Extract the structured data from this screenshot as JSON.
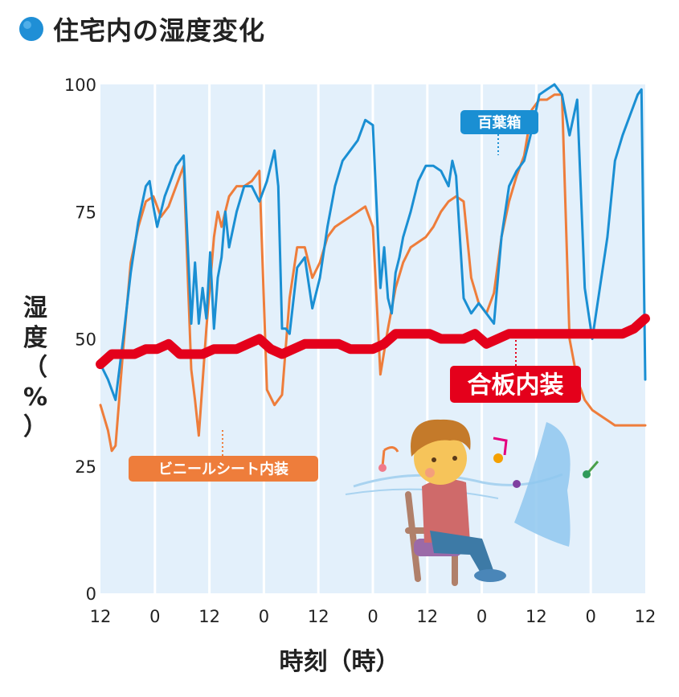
{
  "title": "住宅内の湿度変化",
  "colors": {
    "title_dot": "#1f8fd6",
    "plot_bg": "#e3f0fb",
    "grid": "#ffffff",
    "hyakuyobako": "#1a8fd3",
    "vinyl": "#ee7d3b",
    "plywood": "#e4001b"
  },
  "chart_data": {
    "type": "line",
    "title": "住宅内の湿度変化",
    "ylabel": "湿度 (%)",
    "xlabel": "時刻（時）",
    "ylim": [
      0,
      100
    ],
    "yticks": [
      0,
      25,
      50,
      75,
      100
    ],
    "xlim_hours": [
      0,
      144
    ],
    "xtick_labels": [
      "12",
      "0",
      "12",
      "0",
      "12",
      "0",
      "12",
      "0",
      "12",
      "0",
      "12"
    ],
    "grid": true,
    "series": [
      {
        "name": "百葉箱",
        "x": [
          0,
          2,
          4,
          6,
          8,
          10,
          12,
          13,
          14,
          15,
          16,
          17,
          18,
          20,
          22,
          24,
          25,
          26,
          27,
          28,
          29,
          30,
          31,
          32,
          33,
          34,
          36,
          38,
          40,
          42,
          44,
          45,
          46,
          47,
          48,
          49,
          50,
          52,
          54,
          56,
          58,
          60,
          62,
          64,
          66,
          68,
          70,
          72,
          74,
          75,
          76,
          77,
          78,
          79,
          80,
          82,
          84,
          86,
          88,
          90,
          92,
          93,
          94,
          96,
          98,
          100,
          102,
          104,
          106,
          108,
          110,
          112,
          114,
          116,
          118,
          120,
          122,
          124,
          126,
          128,
          130,
          132,
          134,
          136,
          138,
          140,
          142,
          143,
          144
        ],
        "y": [
          45,
          42,
          38,
          50,
          63,
          73,
          80,
          81,
          76,
          72,
          75,
          78,
          80,
          84,
          86,
          53,
          65,
          53,
          60,
          54,
          67,
          52,
          62,
          66,
          75,
          68,
          75,
          80,
          80,
          77,
          81,
          84,
          87,
          80,
          52,
          52,
          51,
          64,
          66,
          56,
          62,
          72,
          80,
          85,
          87,
          89,
          93,
          92,
          60,
          68,
          58,
          55,
          63,
          66,
          70,
          75,
          81,
          84,
          84,
          83,
          80,
          85,
          82,
          58,
          55,
          57,
          55,
          53,
          70,
          80,
          83,
          85,
          91,
          98,
          99,
          100,
          98,
          90,
          97,
          60,
          50,
          60,
          70,
          85,
          90,
          94,
          98,
          99,
          42
        ]
      },
      {
        "name": "ビニールシート内装",
        "x": [
          0,
          2,
          3,
          4,
          6,
          8,
          10,
          12,
          14,
          16,
          18,
          20,
          22,
          24,
          25,
          26,
          28,
          30,
          31,
          32,
          34,
          36,
          38,
          40,
          42,
          44,
          46,
          48,
          50,
          52,
          54,
          56,
          58,
          60,
          62,
          64,
          66,
          68,
          70,
          72,
          74,
          76,
          78,
          80,
          82,
          84,
          86,
          88,
          90,
          92,
          94,
          96,
          98,
          100,
          102,
          104,
          106,
          108,
          110,
          112,
          114,
          116,
          118,
          120,
          122,
          124,
          126,
          128,
          130,
          132,
          134,
          136,
          138,
          140,
          142,
          143,
          144
        ],
        "y": [
          37,
          32,
          28,
          29,
          48,
          65,
          72,
          77,
          78,
          74,
          76,
          80,
          84,
          44,
          38,
          31,
          52,
          70,
          75,
          72,
          78,
          80,
          80,
          81,
          83,
          40,
          37,
          39,
          58,
          68,
          68,
          62,
          65,
          70,
          72,
          73,
          74,
          75,
          76,
          72,
          43,
          52,
          60,
          65,
          68,
          69,
          70,
          72,
          75,
          77,
          78,
          77,
          62,
          57,
          55,
          59,
          70,
          77,
          82,
          86,
          95,
          97,
          97,
          98,
          98,
          50,
          42,
          38,
          36,
          35,
          34,
          33,
          33,
          33,
          33,
          33,
          33
        ]
      },
      {
        "name": "合板内装",
        "x": [
          0,
          3,
          6,
          9,
          12,
          15,
          18,
          21,
          24,
          27,
          30,
          33,
          36,
          39,
          42,
          45,
          48,
          51,
          54,
          57,
          60,
          63,
          66,
          69,
          72,
          75,
          78,
          81,
          84,
          87,
          90,
          93,
          96,
          99,
          102,
          105,
          108,
          111,
          114,
          117,
          120,
          123,
          126,
          129,
          132,
          135,
          138,
          141,
          144
        ],
        "y": [
          45,
          47,
          47,
          47,
          48,
          48,
          49,
          47,
          47,
          47,
          48,
          48,
          48,
          49,
          50,
          48,
          47,
          48,
          49,
          49,
          49,
          49,
          48,
          48,
          48,
          49,
          51,
          51,
          51,
          51,
          50,
          50,
          50,
          51,
          49,
          50,
          51,
          51,
          51,
          51,
          51,
          51,
          51,
          51,
          51,
          51,
          51,
          52,
          54
        ]
      }
    ],
    "annotations": [
      "百葉箱",
      "ビニールシート内装",
      "合板内装"
    ]
  }
}
